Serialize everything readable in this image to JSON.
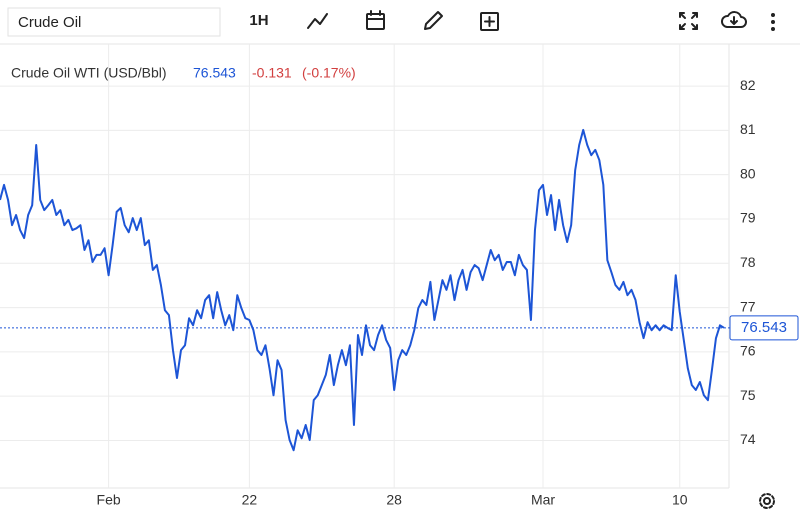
{
  "toolbar": {
    "search": "Crude Oil",
    "interval": "1H"
  },
  "chart_data": {
    "type": "line",
    "last_price": 76.543,
    "change": -0.131,
    "change_pct": "(-0.17%)",
    "series": [
      {
        "name": "Crude Oil WTI (USD/Bbl)",
        "color": "#1d55d6",
        "values": [
          79.43,
          79.77,
          79.43,
          78.86,
          79.09,
          78.75,
          78.57,
          79.09,
          79.31,
          80.67,
          79.43,
          79.2,
          79.31,
          79.43,
          79.09,
          79.2,
          78.86,
          78.98,
          78.75,
          78.79,
          78.86,
          78.3,
          78.52,
          78.03,
          78.19,
          78.19,
          78.34,
          77.73,
          78.41,
          79.16,
          79.25,
          78.86,
          78.7,
          79.02,
          78.75,
          79.02,
          78.41,
          78.52,
          77.85,
          77.96,
          77.51,
          76.94,
          76.83,
          76.04,
          75.41,
          76.04,
          76.15,
          76.76,
          76.6,
          76.94,
          76.76,
          77.17,
          77.28,
          76.76,
          77.35,
          76.94,
          76.6,
          76.83,
          76.49,
          77.28,
          76.99,
          76.76,
          76.72,
          76.49,
          76.04,
          75.93,
          76.15,
          75.63,
          75.02,
          75.81,
          75.59,
          74.46,
          74.01,
          73.78,
          74.23,
          74.05,
          74.35,
          74.01,
          74.91,
          75.02,
          75.25,
          75.48,
          75.93,
          75.25,
          75.7,
          76.04,
          75.7,
          76.15,
          74.35,
          76.38,
          75.93,
          76.6,
          76.15,
          76.04,
          76.38,
          76.6,
          76.27,
          76.09,
          75.14,
          75.81,
          76.04,
          75.93,
          76.15,
          76.49,
          76.99,
          77.17,
          77.06,
          77.58,
          76.72,
          77.17,
          77.62,
          77.4,
          77.73,
          77.17,
          77.62,
          77.85,
          77.4,
          77.8,
          77.96,
          77.89,
          77.62,
          77.96,
          78.3,
          78.07,
          78.19,
          77.85,
          78.03,
          78.03,
          77.73,
          78.19,
          77.96,
          77.85,
          76.72,
          78.75,
          79.65,
          79.77,
          79.09,
          79.54,
          78.75,
          79.43,
          78.86,
          78.48,
          78.86,
          80.1,
          80.67,
          81.01,
          80.67,
          80.44,
          80.56,
          80.33,
          79.77,
          78.07,
          77.8,
          77.51,
          77.4,
          77.58,
          77.28,
          77.4,
          77.17,
          76.67,
          76.31,
          76.67,
          76.49,
          76.6,
          76.49,
          76.6,
          76.54,
          76.49,
          77.73,
          76.9,
          76.27,
          75.63,
          75.25,
          75.14,
          75.32,
          75.02,
          74.91,
          75.59,
          76.31,
          76.6,
          76.543
        ]
      }
    ],
    "xlim": [
      0,
      180
    ],
    "xticks": [
      {
        "value": 27,
        "label": "Feb"
      },
      {
        "value": 62,
        "label": "22"
      },
      {
        "value": 98,
        "label": "28"
      },
      {
        "value": 135,
        "label": "Mar"
      },
      {
        "value": 169,
        "label": "10"
      }
    ],
    "ylim": [
      72.95,
      82.95
    ],
    "yticks": [
      74,
      75,
      76,
      77,
      78,
      79,
      80,
      81,
      82
    ],
    "grid": true
  }
}
